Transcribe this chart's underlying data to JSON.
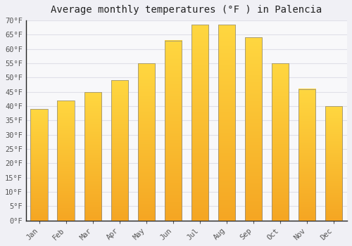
{
  "title": "Average monthly temperatures (°F ) in Palencia",
  "months": [
    "Jan",
    "Feb",
    "Mar",
    "Apr",
    "May",
    "Jun",
    "Jul",
    "Aug",
    "Sep",
    "Oct",
    "Nov",
    "Dec"
  ],
  "values": [
    39.0,
    42.0,
    45.0,
    49.0,
    55.0,
    63.0,
    68.5,
    68.5,
    64.0,
    55.0,
    46.0,
    40.0
  ],
  "ylim": [
    0,
    70
  ],
  "yticks": [
    0,
    5,
    10,
    15,
    20,
    25,
    30,
    35,
    40,
    45,
    50,
    55,
    60,
    65,
    70
  ],
  "background_color": "#f0f0f5",
  "plot_bg_color": "#f8f8fa",
  "grid_color": "#e0e0e8",
  "bar_color_bottom": "#F5A623",
  "bar_color_top": "#FFD740",
  "bar_edge_color": "#888888",
  "title_fontsize": 10,
  "tick_fontsize": 7.5
}
